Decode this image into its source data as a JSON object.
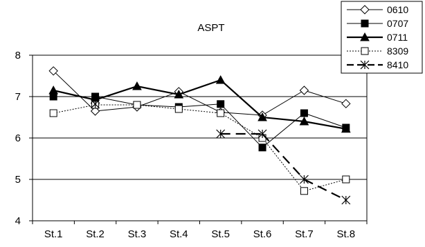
{
  "chart_data": {
    "type": "line",
    "title": "ASPT",
    "xlabel": "",
    "ylabel": "",
    "categories": [
      "St.1",
      "St.2",
      "St.3",
      "St.4",
      "St.5",
      "St.6",
      "St.7",
      "St.8"
    ],
    "ylim": [
      4,
      8
    ],
    "yticks": [
      4,
      5,
      6,
      7,
      8
    ],
    "grid": "horizontal",
    "legend_position": "top-right",
    "series": [
      {
        "name": "0610",
        "marker": "diamond-open",
        "line": "solid-thin",
        "color": "#000000",
        "values": [
          7.62,
          6.65,
          6.75,
          7.12,
          6.62,
          6.55,
          7.15,
          6.83
        ]
      },
      {
        "name": "0707",
        "marker": "square-filled",
        "line": "solid-thin",
        "color": "#000000",
        "values": [
          7.0,
          7.0,
          6.8,
          6.75,
          6.82,
          5.77,
          6.6,
          6.25
        ]
      },
      {
        "name": "0711",
        "marker": "triangle-filled",
        "line": "solid-thick",
        "color": "#000000",
        "values": [
          7.15,
          6.92,
          7.25,
          7.05,
          7.4,
          6.5,
          6.4,
          6.22
        ]
      },
      {
        "name": "8309",
        "marker": "square-open",
        "line": "dotted",
        "color": "#000000",
        "values": [
          6.6,
          6.8,
          6.8,
          6.7,
          6.6,
          6.0,
          4.72,
          5.0
        ]
      },
      {
        "name": "8410",
        "marker": "asterisk",
        "line": "dashed-thick",
        "color": "#000000",
        "values": [
          null,
          6.82,
          null,
          null,
          6.1,
          6.1,
          5.0,
          4.5
        ]
      }
    ]
  }
}
